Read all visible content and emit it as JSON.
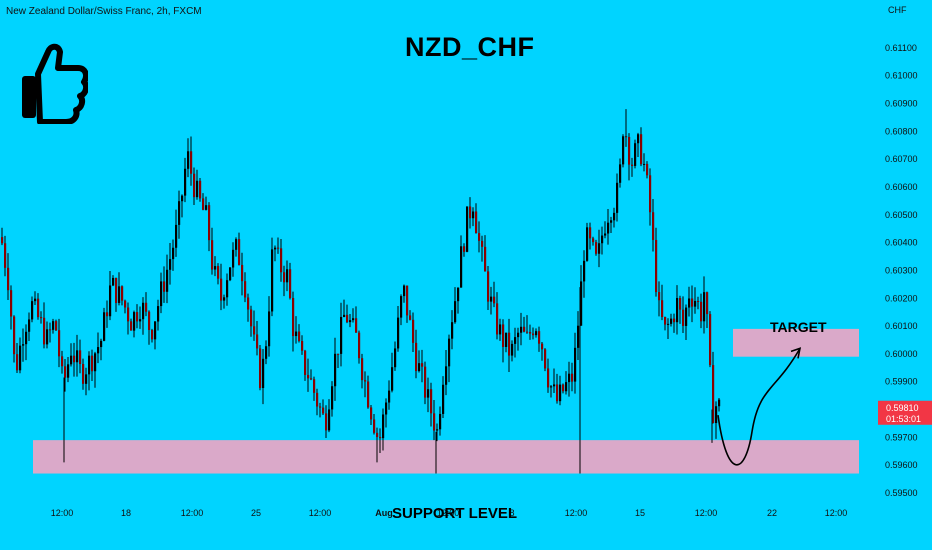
{
  "header": {
    "symbol_description": "New Zealand Dollar/Swiss Franc, 2h, FXCM",
    "pair_title": "NZD_CHF"
  },
  "annotations": {
    "support_label": "SUPPORT LEVEL",
    "target_label": "TARGET",
    "thumbs_up_icon": "thumbs-up-icon"
  },
  "price_badge": {
    "price": "0.59810",
    "countdown": "01:53:01"
  },
  "colors": {
    "background": "#00d4ff",
    "candle": "#000000",
    "candle_down_body": "#8b0000",
    "zone": "#e6a6c6",
    "badge": "#f23645"
  },
  "chart_data": {
    "type": "candlestick",
    "title": "NZD_CHF",
    "y_axis_label": "CHF",
    "ylim": [
      0.595,
      0.6115
    ],
    "y_ticks": [
      "0.61100",
      "0.61000",
      "0.60900",
      "0.60800",
      "0.60700",
      "0.60600",
      "0.60500",
      "0.60400",
      "0.60300",
      "0.60200",
      "0.60100",
      "0.60000",
      "0.59900",
      "0.59800",
      "0.59700",
      "0.59600",
      "0.59500"
    ],
    "x_ticks": [
      "12:00",
      "18",
      "12:00",
      "25",
      "12:00",
      "Aug",
      "12:00",
      "8",
      "12:00",
      "15",
      "12:00",
      "22",
      "12:00"
    ],
    "last_price": 0.5981,
    "zones": [
      {
        "label": "SUPPORT LEVEL",
        "low": 0.5957,
        "high": 0.5969
      },
      {
        "label": "TARGET",
        "low": 0.5999,
        "high": 0.6009
      }
    ],
    "price_path": [
      [
        0,
        0.6042
      ],
      [
        8,
        0.6025
      ],
      [
        14,
        0.5993
      ],
      [
        22,
        0.6008
      ],
      [
        30,
        0.6018
      ],
      [
        38,
        0.6012
      ],
      [
        46,
        0.6005
      ],
      [
        54,
        0.6012
      ],
      [
        62,
        0.5988
      ],
      [
        70,
        0.6002
      ],
      [
        80,
        0.5993
      ],
      [
        90,
        0.5998
      ],
      [
        100,
        0.6005
      ],
      [
        110,
        0.6025
      ],
      [
        120,
        0.602
      ],
      [
        130,
        0.6012
      ],
      [
        140,
        0.6018
      ],
      [
        150,
        0.6008
      ],
      [
        160,
        0.6022
      ],
      [
        168,
        0.6033
      ],
      [
        176,
        0.6045
      ],
      [
        182,
        0.606
      ],
      [
        186,
        0.6072
      ],
      [
        192,
        0.6062
      ],
      [
        198,
        0.6055
      ],
      [
        206,
        0.6048
      ],
      [
        212,
        0.603
      ],
      [
        220,
        0.602
      ],
      [
        228,
        0.6032
      ],
      [
        236,
        0.6038
      ],
      [
        244,
        0.6025
      ],
      [
        252,
        0.6005
      ],
      [
        260,
        0.599
      ],
      [
        266,
        0.6008
      ],
      [
        272,
        0.604
      ],
      [
        278,
        0.6032
      ],
      [
        286,
        0.6028
      ],
      [
        292,
        0.601
      ],
      [
        300,
        0.5998
      ],
      [
        308,
        0.5992
      ],
      [
        316,
        0.5983
      ],
      [
        324,
        0.5975
      ],
      [
        332,
        0.5995
      ],
      [
        338,
        0.6005
      ],
      [
        344,
        0.6015
      ],
      [
        350,
        0.601
      ],
      [
        356,
        0.6005
      ],
      [
        362,
        0.5993
      ],
      [
        370,
        0.598
      ],
      [
        378,
        0.5968
      ],
      [
        386,
        0.5985
      ],
      [
        394,
        0.6002
      ],
      [
        402,
        0.6024
      ],
      [
        408,
        0.6012
      ],
      [
        414,
        0.6
      ],
      [
        420,
        0.5992
      ],
      [
        428,
        0.5982
      ],
      [
        436,
        0.5972
      ],
      [
        442,
        0.5993
      ],
      [
        448,
        0.6008
      ],
      [
        454,
        0.602
      ],
      [
        460,
        0.6035
      ],
      [
        466,
        0.6048
      ],
      [
        472,
        0.6055
      ],
      [
        478,
        0.604
      ],
      [
        486,
        0.6024
      ],
      [
        494,
        0.6012
      ],
      [
        502,
        0.6005
      ],
      [
        510,
        0.6
      ],
      [
        518,
        0.6008
      ],
      [
        526,
        0.6005
      ],
      [
        534,
        0.6012
      ],
      [
        542,
        0.6002
      ],
      [
        548,
        0.599
      ],
      [
        556,
        0.5983
      ],
      [
        564,
        0.5988
      ],
      [
        572,
        0.5992
      ],
      [
        578,
        0.6015
      ],
      [
        584,
        0.6042
      ],
      [
        590,
        0.6038
      ],
      [
        596,
        0.6032
      ],
      [
        602,
        0.6045
      ],
      [
        608,
        0.6052
      ],
      [
        614,
        0.6055
      ],
      [
        618,
        0.606
      ],
      [
        622,
        0.6082
      ],
      [
        626,
        0.6078
      ],
      [
        630,
        0.6068
      ],
      [
        634,
        0.6072
      ],
      [
        638,
        0.6075
      ],
      [
        642,
        0.607
      ],
      [
        648,
        0.6055
      ],
      [
        654,
        0.603
      ],
      [
        658,
        0.6015
      ],
      [
        664,
        0.6008
      ],
      [
        670,
        0.6012
      ],
      [
        676,
        0.6018
      ],
      [
        682,
        0.601
      ],
      [
        688,
        0.6022
      ],
      [
        694,
        0.602
      ],
      [
        700,
        0.6015
      ],
      [
        704,
        0.6025
      ],
      [
        708,
        0.5995
      ],
      [
        712,
        0.598
      ],
      [
        716,
        0.5982
      ],
      [
        718,
        0.5981
      ]
    ],
    "projection": [
      [
        718,
        0.5978
      ],
      [
        735,
        0.5961
      ],
      [
        752,
        0.5972
      ],
      [
        775,
        0.599
      ],
      [
        800,
        0.6002
      ]
    ]
  }
}
